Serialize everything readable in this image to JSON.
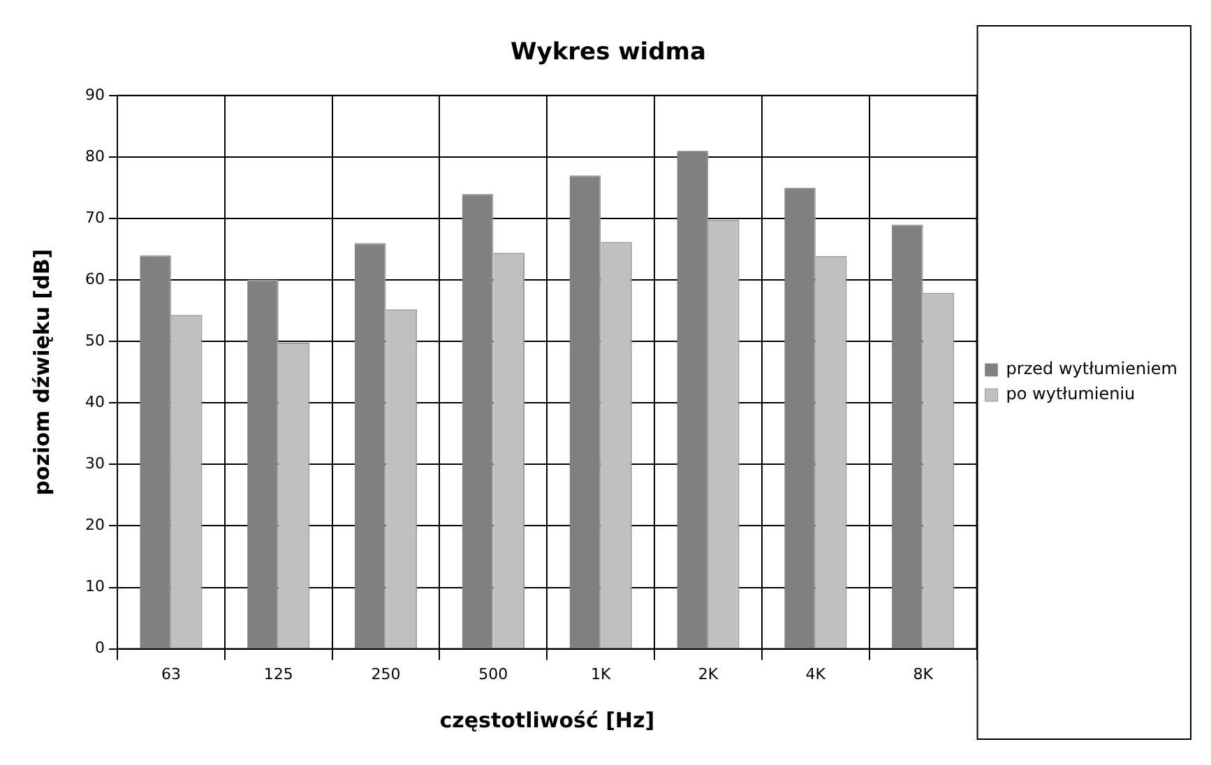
{
  "chart_data": {
    "type": "bar",
    "title": "Wykres widma",
    "xlabel": "częstotliwość [Hz]",
    "ylabel": "poziom dźwięku [dB]",
    "categories": [
      "63",
      "125",
      "250",
      "500",
      "1K",
      "2K",
      "4K",
      "8K"
    ],
    "series": [
      {
        "name": "przed wytłumieniem",
        "color": "#808080",
        "values": [
          64,
          60,
          66,
          74,
          77,
          81,
          75,
          69
        ]
      },
      {
        "name": "po wytłumieniu",
        "color": "#c0c0c0",
        "values": [
          54.3,
          49.8,
          55.2,
          64.4,
          66.2,
          69.8,
          63.9,
          57.9
        ]
      }
    ],
    "ylim": [
      0,
      90
    ],
    "yticks": [
      0,
      10,
      20,
      30,
      40,
      50,
      60,
      70,
      80,
      90
    ],
    "grid": true,
    "legend": "right"
  }
}
